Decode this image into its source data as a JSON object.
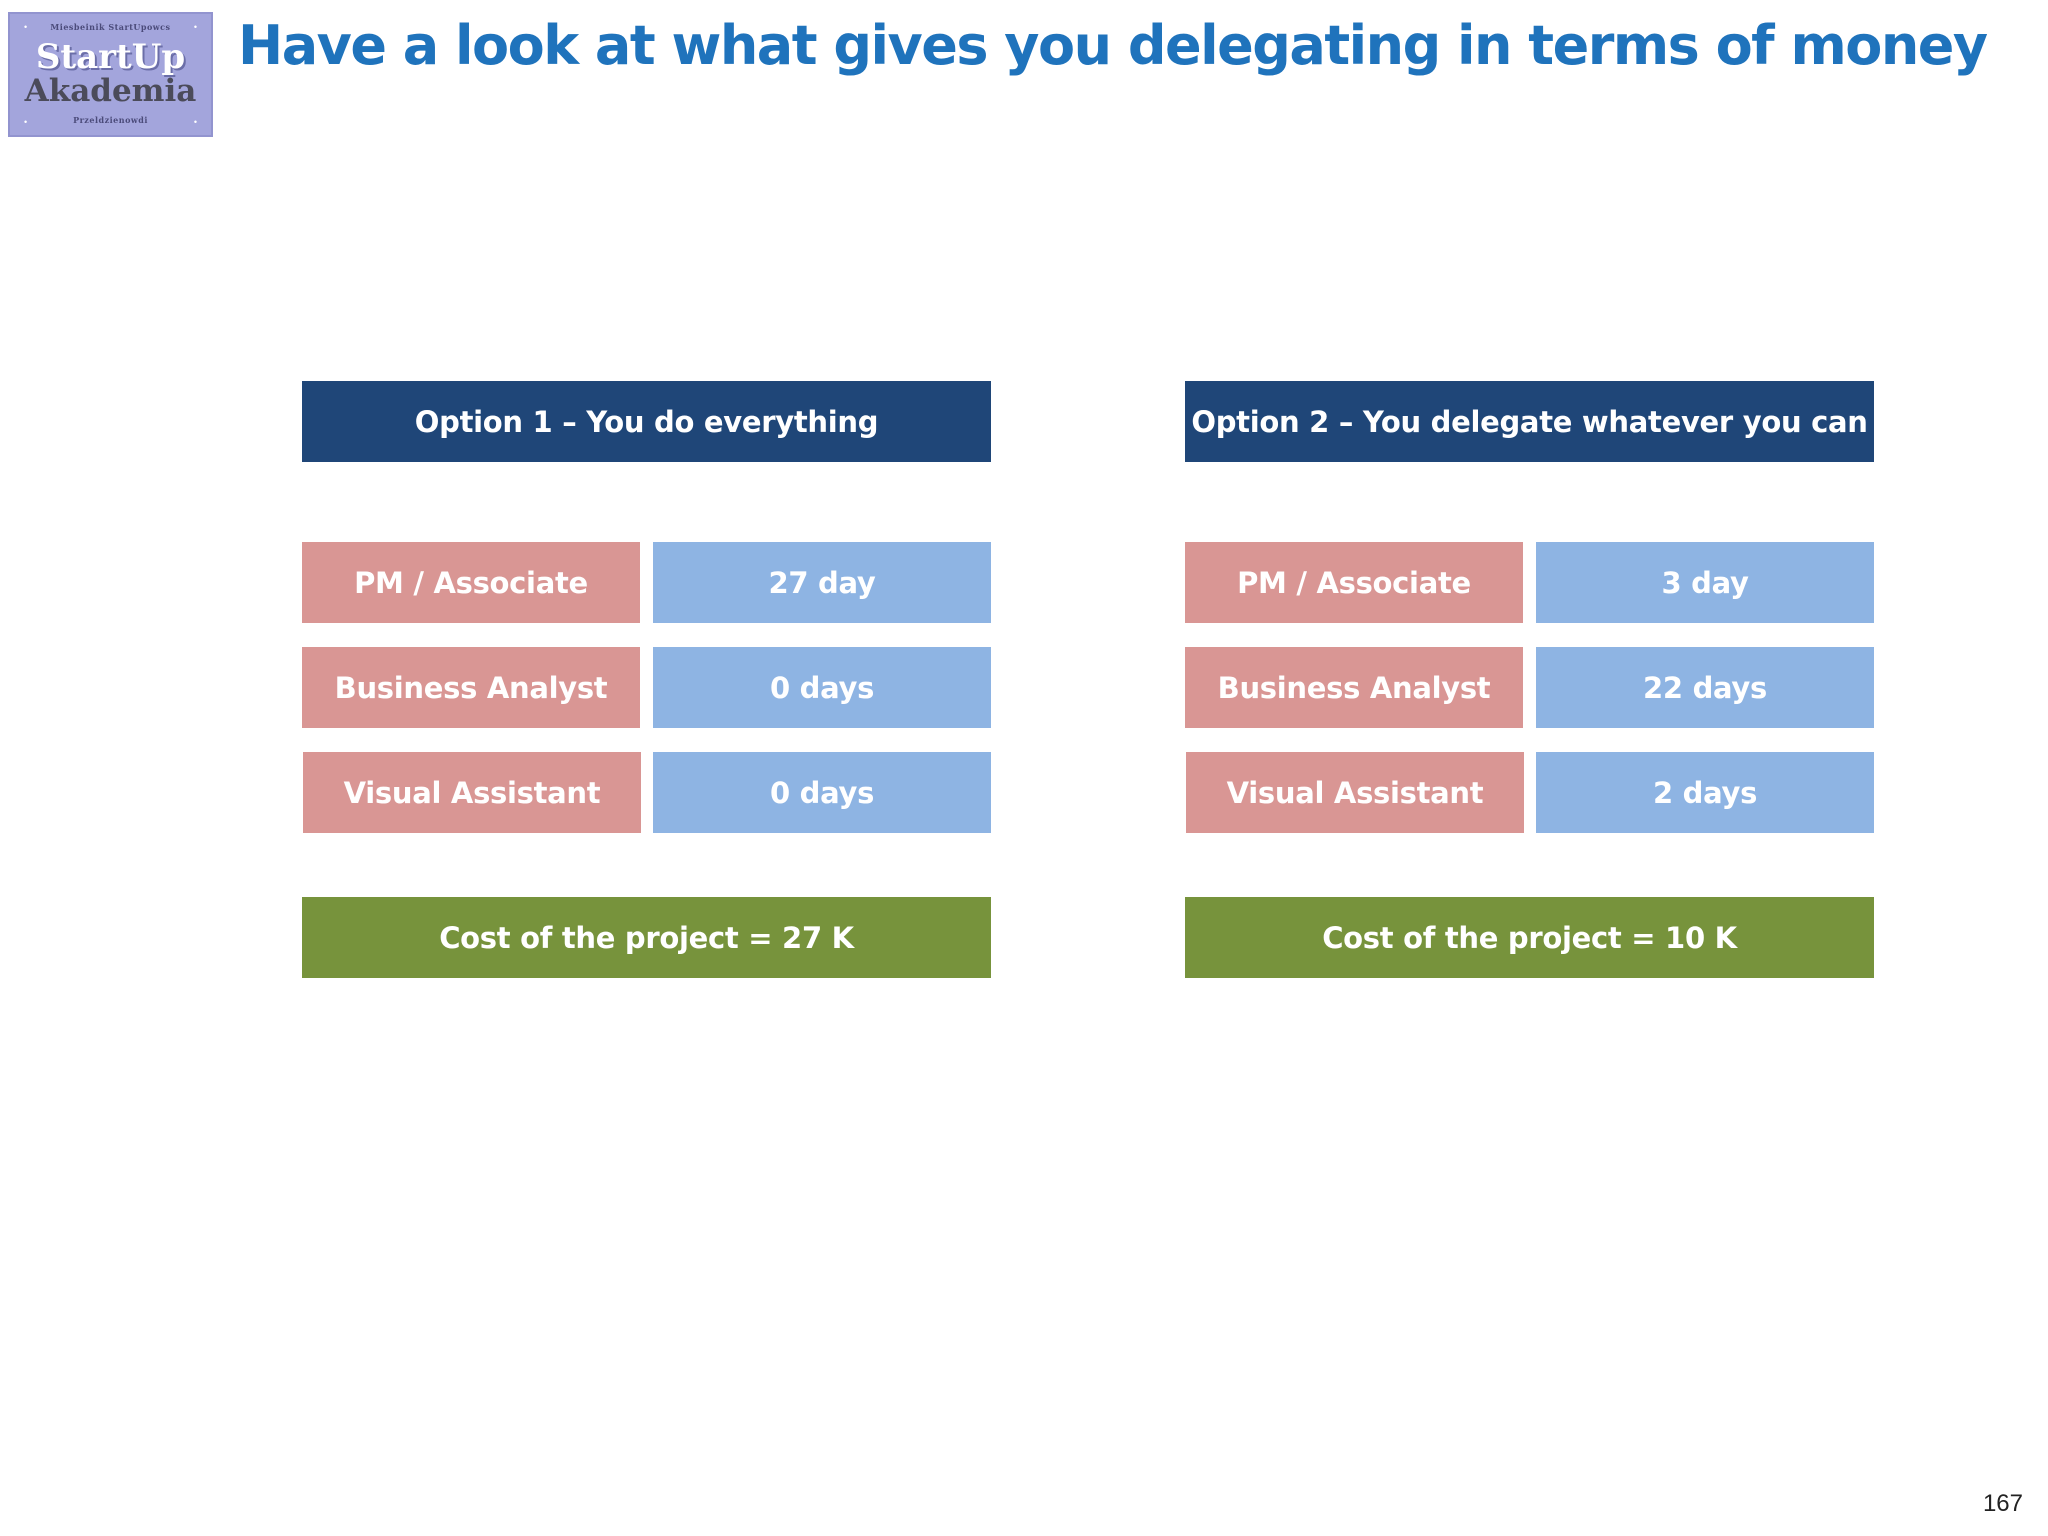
{
  "logo": {
    "top_text": "Miesbeinik StartUpowcs",
    "line1": "StartUp",
    "line2": "Akademia",
    "bottom_text": "Przeldzienowdi"
  },
  "title": "Have a look at what gives you delegating in terms of money",
  "option1": {
    "header": "Option 1 – You do everything",
    "rows": [
      {
        "role": "PM / Associate",
        "days": "27 day"
      },
      {
        "role": "Business Analyst",
        "days": "0 days"
      },
      {
        "role": "Visual Assistant",
        "days": "0 days"
      }
    ],
    "cost": "Cost of the project = 27 K"
  },
  "option2": {
    "header": "Option 2 – You delegate whatever  you can",
    "rows": [
      {
        "role": "PM / Associate",
        "days": "3  day"
      },
      {
        "role": "Business Analyst",
        "days": "22 days"
      },
      {
        "role": "Visual Assistant",
        "days": "2 days"
      }
    ],
    "cost": "Cost of the project = 10 K"
  },
  "page_number": "167",
  "colors": {
    "title": "#1f73bc",
    "header": "#1f4678",
    "role": "#d99694",
    "days": "#8eb4e3",
    "cost": "#77933c"
  }
}
